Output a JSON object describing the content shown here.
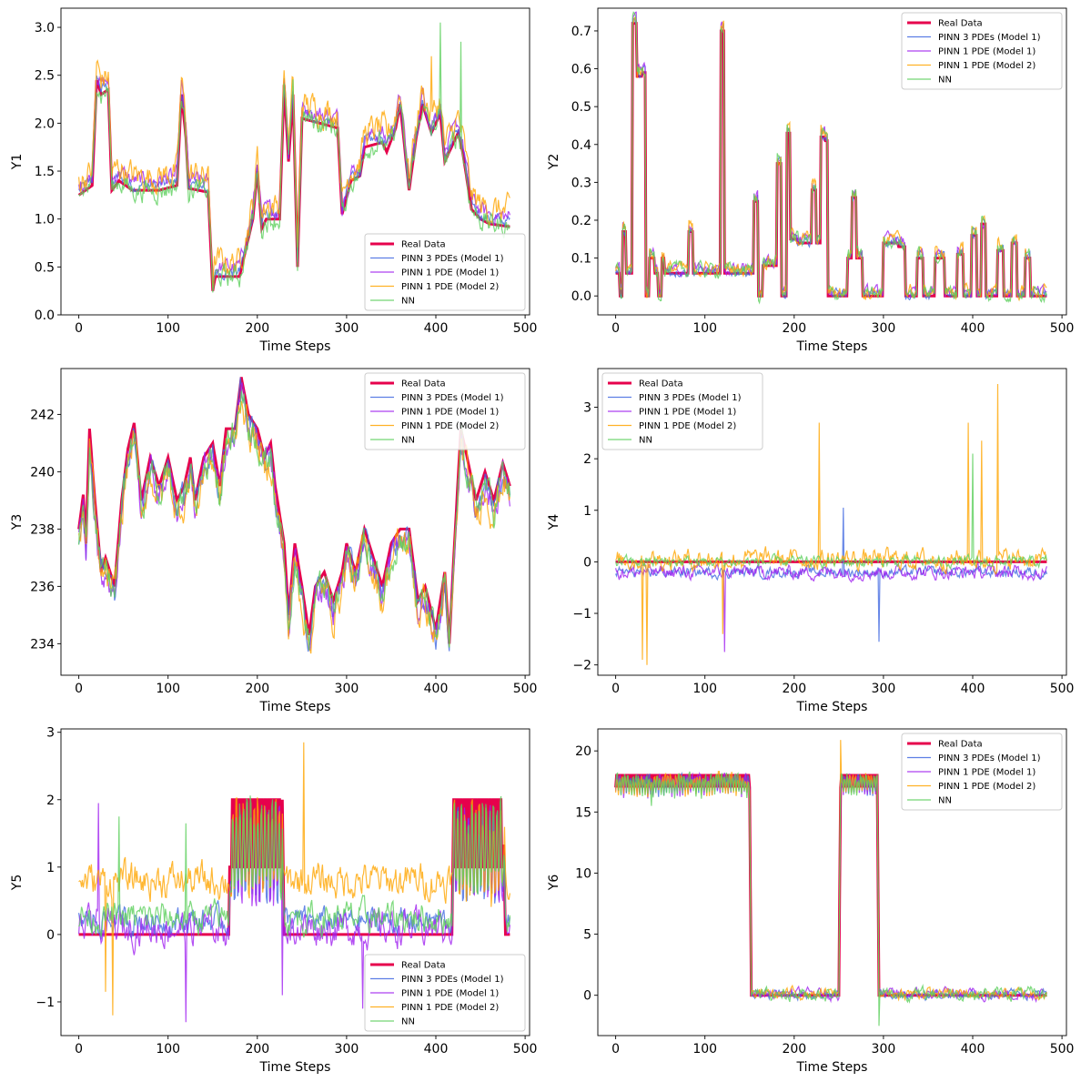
{
  "figure": {
    "description_free": true
  },
  "series_style": {
    "names": [
      "Real Data",
      "PINN 3 PDEs (Model 1)",
      "PINN 1 PDE (Model 1)",
      "PINN 1 PDE (Model 2)",
      "NN"
    ],
    "colors": [
      "#e6004c",
      "#4169e1",
      "#a020f0",
      "#ffa500",
      "#5ccf5c"
    ]
  },
  "chart_data": [
    {
      "type": "line",
      "id": "Y1",
      "title": "",
      "xlabel": "Time Steps",
      "ylabel": "Y1",
      "xlim": [
        -20,
        505
      ],
      "ylim": [
        0,
        3.2
      ],
      "xticks": [
        0,
        100,
        200,
        300,
        400,
        500
      ],
      "yticks": [
        0.0,
        0.5,
        1.0,
        1.5,
        2.0,
        2.5,
        3.0
      ],
      "ytick_labels": [
        "0.0",
        "0.5",
        "1.0",
        "1.5",
        "2.0",
        "2.5",
        "3.0"
      ],
      "legend_position": "lower-right",
      "knots": [
        [
          0,
          1.25
        ],
        [
          15,
          1.35
        ],
        [
          20,
          2.45
        ],
        [
          25,
          2.3
        ],
        [
          33,
          2.35
        ],
        [
          37,
          1.3
        ],
        [
          45,
          1.4
        ],
        [
          60,
          1.3
        ],
        [
          90,
          1.3
        ],
        [
          110,
          1.35
        ],
        [
          115,
          2.3
        ],
        [
          120,
          1.85
        ],
        [
          123,
          1.32
        ],
        [
          145,
          1.28
        ],
        [
          150,
          0.25
        ],
        [
          153,
          0.4
        ],
        [
          180,
          0.4
        ],
        [
          195,
          1.0
        ],
        [
          200,
          1.5
        ],
        [
          205,
          0.9
        ],
        [
          210,
          1.0
        ],
        [
          225,
          1.0
        ],
        [
          230,
          2.4
        ],
        [
          235,
          1.6
        ],
        [
          240,
          2.3
        ],
        [
          245,
          0.5
        ],
        [
          250,
          2.05
        ],
        [
          290,
          1.95
        ],
        [
          295,
          1.05
        ],
        [
          305,
          1.4
        ],
        [
          315,
          1.45
        ],
        [
          320,
          1.75
        ],
        [
          340,
          1.8
        ],
        [
          345,
          1.7
        ],
        [
          355,
          1.95
        ],
        [
          360,
          2.2
        ],
        [
          370,
          1.3
        ],
        [
          378,
          1.85
        ],
        [
          385,
          2.2
        ],
        [
          395,
          1.9
        ],
        [
          405,
          2.1
        ],
        [
          410,
          1.6
        ],
        [
          425,
          1.9
        ],
        [
          430,
          1.7
        ],
        [
          440,
          1.1
        ],
        [
          450,
          1.0
        ],
        [
          460,
          0.95
        ],
        [
          483,
          0.92
        ]
      ],
      "model_offsets": [
        0.05,
        0.1,
        0.15,
        0.0
      ],
      "model_noise": [
        0.05,
        0.07,
        0.12,
        0.09
      ],
      "spikes": [
        [
          405,
          3.05,
          3
        ],
        [
          428,
          2.85,
          3
        ],
        [
          395,
          2.7,
          2
        ]
      ],
      "step": false
    },
    {
      "type": "line",
      "id": "Y2",
      "title": "",
      "xlabel": "Time Steps",
      "ylabel": "Y2",
      "xlim": [
        -20,
        505
      ],
      "ylim": [
        -0.05,
        0.76
      ],
      "xticks": [
        0,
        100,
        200,
        300,
        400,
        500
      ],
      "yticks": [
        0.0,
        0.1,
        0.2,
        0.3,
        0.4,
        0.5,
        0.6,
        0.7
      ],
      "ytick_labels": [
        "0.0",
        "0.1",
        "0.2",
        "0.3",
        "0.4",
        "0.5",
        "0.6",
        "0.7"
      ],
      "legend_position": "top-right",
      "knots": [
        [
          0,
          0.06
        ],
        [
          5,
          0.0
        ],
        [
          8,
          0.17
        ],
        [
          12,
          0.06
        ],
        [
          20,
          0.72
        ],
        [
          24,
          0.58
        ],
        [
          30,
          0.59
        ],
        [
          34,
          0.0
        ],
        [
          38,
          0.1
        ],
        [
          45,
          0.06
        ],
        [
          48,
          0.0
        ],
        [
          52,
          0.1
        ],
        [
          55,
          0.06
        ],
        [
          78,
          0.06
        ],
        [
          82,
          0.17
        ],
        [
          87,
          0.06
        ],
        [
          115,
          0.06
        ],
        [
          118,
          0.7
        ],
        [
          122,
          0.06
        ],
        [
          150,
          0.06
        ],
        [
          155,
          0.25
        ],
        [
          160,
          0.0
        ],
        [
          165,
          0.08
        ],
        [
          175,
          0.08
        ],
        [
          182,
          0.35
        ],
        [
          186,
          0.0
        ],
        [
          192,
          0.43
        ],
        [
          196,
          0.15
        ],
        [
          205,
          0.14
        ],
        [
          215,
          0.14
        ],
        [
          220,
          0.28
        ],
        [
          225,
          0.14
        ],
        [
          230,
          0.42
        ],
        [
          235,
          0.41
        ],
        [
          238,
          0.0
        ],
        [
          255,
          0.0
        ],
        [
          260,
          0.1
        ],
        [
          265,
          0.26
        ],
        [
          270,
          0.1
        ],
        [
          278,
          0.0
        ],
        [
          295,
          0.0
        ],
        [
          300,
          0.14
        ],
        [
          320,
          0.13
        ],
        [
          325,
          0.0
        ],
        [
          340,
          0.1
        ],
        [
          345,
          0.0
        ],
        [
          360,
          0.1
        ],
        [
          370,
          0.0
        ],
        [
          385,
          0.11
        ],
        [
          390,
          0.0
        ],
        [
          400,
          0.16
        ],
        [
          405,
          0.0
        ],
        [
          410,
          0.19
        ],
        [
          415,
          0.0
        ],
        [
          430,
          0.12
        ],
        [
          435,
          0.0
        ],
        [
          445,
          0.14
        ],
        [
          450,
          0.0
        ],
        [
          460,
          0.1
        ],
        [
          465,
          0.0
        ],
        [
          483,
          0.0
        ]
      ],
      "model_offsets": [
        0.005,
        0.01,
        0.012,
        0.008
      ],
      "model_noise": [
        0.01,
        0.012,
        0.015,
        0.015
      ],
      "spikes": [],
      "step": true
    },
    {
      "type": "line",
      "id": "Y3",
      "title": "",
      "xlabel": "Time Steps",
      "ylabel": "Y3",
      "xlim": [
        -20,
        505
      ],
      "ylim": [
        232.9,
        243.6
      ],
      "xticks": [
        0,
        100,
        200,
        300,
        400,
        500
      ],
      "yticks": [
        234,
        236,
        238,
        240,
        242
      ],
      "ytick_labels": [
        "234",
        "236",
        "238",
        "240",
        "242"
      ],
      "legend_position": "top-right",
      "knots": [
        [
          0,
          238
        ],
        [
          5,
          239.2
        ],
        [
          8,
          237.5
        ],
        [
          12,
          241.5
        ],
        [
          18,
          239
        ],
        [
          25,
          236.5
        ],
        [
          30,
          237
        ],
        [
          40,
          236
        ],
        [
          48,
          239
        ],
        [
          55,
          240.8
        ],
        [
          62,
          241.7
        ],
        [
          70,
          239
        ],
        [
          80,
          240.5
        ],
        [
          90,
          239.5
        ],
        [
          100,
          240.5
        ],
        [
          110,
          239
        ],
        [
          118,
          239.5
        ],
        [
          125,
          240.5
        ],
        [
          130,
          239
        ],
        [
          140,
          240.5
        ],
        [
          150,
          241
        ],
        [
          158,
          239.5
        ],
        [
          165,
          241.5
        ],
        [
          175,
          241.5
        ],
        [
          182,
          243.3
        ],
        [
          190,
          242
        ],
        [
          200,
          241.5
        ],
        [
          208,
          240.5
        ],
        [
          215,
          241
        ],
        [
          220,
          239.5
        ],
        [
          230,
          237.5
        ],
        [
          235,
          235
        ],
        [
          242,
          237.5
        ],
        [
          250,
          236
        ],
        [
          258,
          234.3
        ],
        [
          265,
          236
        ],
        [
          275,
          236.5
        ],
        [
          285,
          235.5
        ],
        [
          295,
          236.5
        ],
        [
          300,
          237.5
        ],
        [
          310,
          236.5
        ],
        [
          320,
          238
        ],
        [
          330,
          237
        ],
        [
          340,
          236
        ],
        [
          350,
          237.5
        ],
        [
          360,
          238
        ],
        [
          370,
          238
        ],
        [
          380,
          235.5
        ],
        [
          388,
          236
        ],
        [
          400,
          234.5
        ],
        [
          410,
          236.5
        ],
        [
          415,
          234
        ],
        [
          420,
          237
        ],
        [
          428,
          241.5
        ],
        [
          435,
          240.5
        ],
        [
          445,
          239
        ],
        [
          455,
          240
        ],
        [
          465,
          239
        ],
        [
          475,
          240.3
        ],
        [
          483,
          239.5
        ]
      ],
      "model_offsets": [
        -0.3,
        -0.4,
        -0.5,
        -0.35
      ],
      "model_noise": [
        0.35,
        0.4,
        0.5,
        0.45
      ],
      "spikes": [],
      "step": false
    },
    {
      "type": "line",
      "id": "Y4",
      "title": "",
      "xlabel": "Time Steps",
      "ylabel": "Y4",
      "xlim": [
        -20,
        505
      ],
      "ylim": [
        -2.2,
        3.75
      ],
      "xticks": [
        0,
        100,
        200,
        300,
        400,
        500
      ],
      "yticks": [
        -2,
        -1,
        0,
        1,
        2,
        3
      ],
      "ytick_labels": [
        "−2",
        "−1",
        "0",
        "1",
        "2",
        "3"
      ],
      "legend_position": "top-left",
      "knots": [
        [
          0,
          0
        ],
        [
          483,
          0
        ]
      ],
      "model_offsets": [
        -0.2,
        -0.2,
        0.05,
        0.0
      ],
      "model_noise": [
        0.08,
        0.1,
        0.15,
        0.08
      ],
      "spikes": [
        [
          30,
          -1.9,
          2
        ],
        [
          35,
          -2.0,
          2
        ],
        [
          122,
          -1.75,
          1
        ],
        [
          295,
          -1.55,
          0
        ],
        [
          228,
          2.7,
          2
        ],
        [
          395,
          2.7,
          2
        ],
        [
          428,
          3.45,
          2
        ],
        [
          410,
          2.35,
          2
        ],
        [
          255,
          1.05,
          0
        ],
        [
          120,
          -1.4,
          2
        ],
        [
          400,
          2.1,
          3
        ]
      ],
      "step": false
    },
    {
      "type": "line",
      "id": "Y5",
      "title": "",
      "xlabel": "Time Steps",
      "ylabel": "Y5",
      "xlim": [
        -20,
        505
      ],
      "ylim": [
        -1.5,
        3.05
      ],
      "xticks": [
        0,
        100,
        200,
        300,
        400,
        500
      ],
      "yticks": [
        -1,
        0,
        1,
        2,
        3
      ],
      "ytick_labels": [
        "−1",
        "0",
        "1",
        "2",
        "3"
      ],
      "legend_position": "lower-right",
      "knots": [
        [
          0,
          0
        ],
        [
          168,
          0
        ],
        [
          170,
          2
        ],
        [
          228,
          2
        ],
        [
          230,
          0
        ],
        [
          418,
          0
        ],
        [
          420,
          2
        ],
        [
          475,
          2
        ],
        [
          478,
          0
        ],
        [
          483,
          0
        ]
      ],
      "model_offsets": [
        0.2,
        0.1,
        0.8,
        0.25
      ],
      "model_noise": [
        0.15,
        0.2,
        0.2,
        0.18
      ],
      "spikes": [
        [
          22,
          1.95,
          1
        ],
        [
          38,
          -1.2,
          2
        ],
        [
          120,
          -1.3,
          1
        ],
        [
          252,
          2.85,
          2
        ],
        [
          228,
          -0.9,
          1
        ],
        [
          318,
          -1.1,
          1
        ],
        [
          45,
          1.75,
          3
        ],
        [
          120,
          1.65,
          3
        ],
        [
          30,
          -0.85,
          2
        ]
      ],
      "step": false
    },
    {
      "type": "line",
      "id": "Y6",
      "title": "",
      "xlabel": "Time Steps",
      "ylabel": "Y6",
      "xlim": [
        -20,
        505
      ],
      "ylim": [
        -3.3,
        21.8
      ],
      "xticks": [
        0,
        100,
        200,
        300,
        400,
        500
      ],
      "yticks": [
        0,
        5,
        10,
        15,
        20
      ],
      "ytick_labels": [
        "0",
        "5",
        "10",
        "15",
        "20"
      ],
      "legend_position": "top-right",
      "knots": [
        [
          0,
          17.5
        ],
        [
          150,
          17.5
        ],
        [
          152,
          0
        ],
        [
          250,
          0
        ],
        [
          252,
          17.5
        ],
        [
          293,
          17.5
        ],
        [
          295,
          0
        ],
        [
          483,
          0
        ]
      ],
      "model_offsets": [
        0.1,
        0.1,
        0.15,
        0.1
      ],
      "model_noise": [
        0.3,
        0.35,
        0.35,
        0.4
      ],
      "spikes": [
        [
          252,
          20.9,
          2
        ],
        [
          295,
          -2.5,
          3
        ],
        [
          40,
          15.5,
          3
        ]
      ],
      "step": false
    }
  ]
}
